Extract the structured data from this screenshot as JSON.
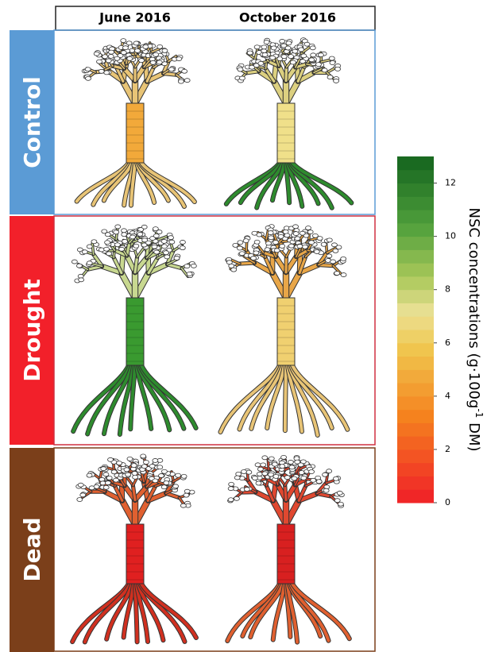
{
  "header": {
    "columns": [
      "June 2016",
      "October 2016"
    ]
  },
  "rows": [
    "Control",
    "Drought",
    "Dead"
  ],
  "colorbar": {
    "label": "NSC concentrations (g·100g",
    "label_sup": "-1",
    "label_end": " DM)",
    "clim": [
      0,
      13
    ],
    "ticks": [
      0,
      2,
      4,
      6,
      8,
      10,
      12
    ]
  }
}
